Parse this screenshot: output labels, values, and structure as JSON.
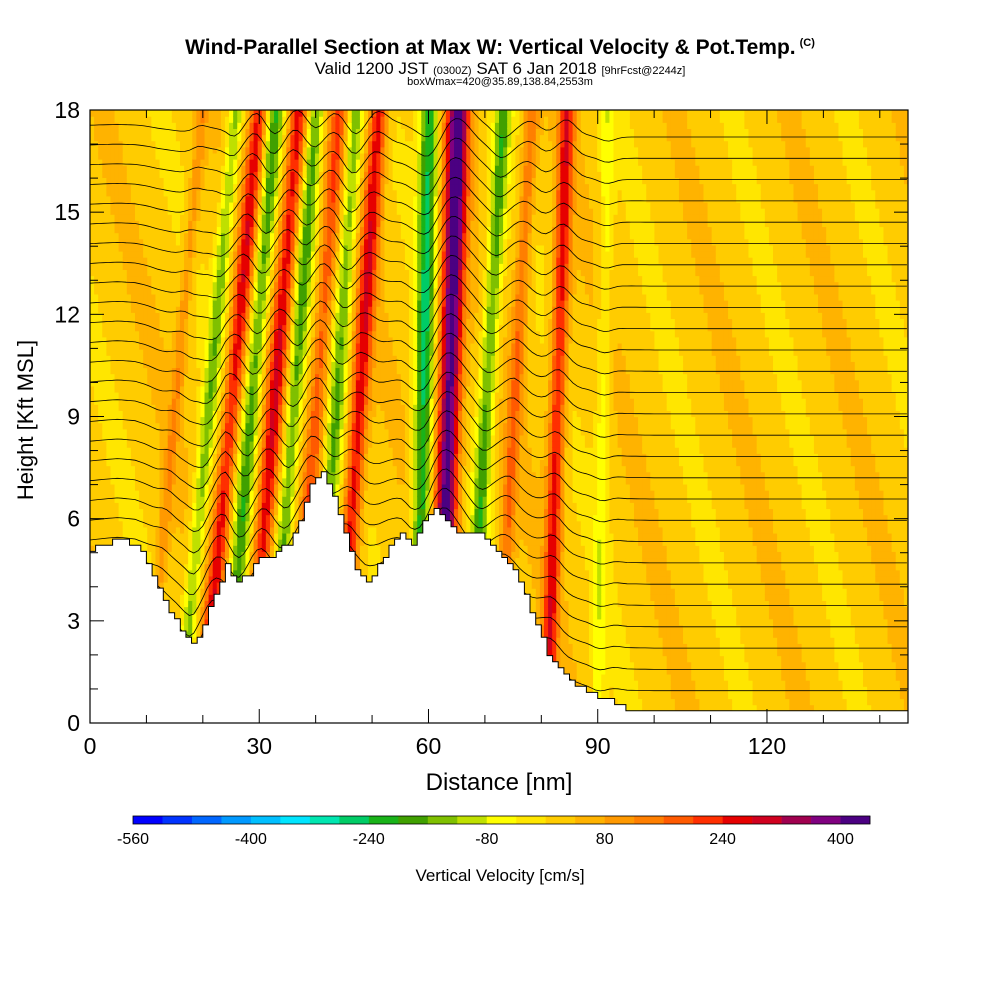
{
  "title": {
    "main": "Wind-Parallel Section at Max W: Vertical Velocity & Pot.Temp.",
    "copyright": "(C)",
    "valid_prefix": "Valid 1200 JST",
    "valid_utc": "(0300Z)",
    "valid_date": "SAT 6 Jan 2018",
    "forecast": "[9hrFcst@2244z]",
    "box_info": "boxWmax=420@35.89,138.84,2553m"
  },
  "chart_data": {
    "type": "heatmap",
    "xlabel": "Distance [nm]",
    "ylabel": "Height [Kft MSL]",
    "xlim": [
      0,
      145
    ],
    "ylim": [
      0,
      18
    ],
    "x_ticks": [
      0,
      30,
      60,
      90,
      120
    ],
    "y_ticks": [
      0,
      3,
      6,
      9,
      12,
      15,
      18
    ],
    "colorbar": {
      "label": "Vertical Velocity [cm/s]",
      "min": -560,
      "max": 440,
      "step": 40,
      "tick_labels": [
        -560,
        -400,
        -240,
        -80,
        80,
        240,
        400
      ],
      "colors": [
        "#0000ff",
        "#0033ff",
        "#0066ff",
        "#0099ff",
        "#00bfff",
        "#00e5ff",
        "#00e6b0",
        "#00cc66",
        "#19b319",
        "#40a000",
        "#7fc000",
        "#bfe000",
        "#ffff00",
        "#ffe600",
        "#ffcc00",
        "#ffb300",
        "#ff9900",
        "#ff7f00",
        "#ff5a00",
        "#ff2f00",
        "#e60000",
        "#d0001f",
        "#a0004f",
        "#800080",
        "#4b0082"
      ]
    },
    "terrain_kft": [
      [
        0,
        5.1
      ],
      [
        3,
        5.3
      ],
      [
        5,
        5.4
      ],
      [
        8,
        5.2
      ],
      [
        10,
        4.7
      ],
      [
        12,
        3.9
      ],
      [
        14,
        3.3
      ],
      [
        16,
        2.7
      ],
      [
        18,
        2.3
      ],
      [
        20,
        2.9
      ],
      [
        22,
        3.8
      ],
      [
        24,
        4.6
      ],
      [
        26,
        4.2
      ],
      [
        28,
        4.4
      ],
      [
        30,
        4.8
      ],
      [
        33,
        5.0
      ],
      [
        35,
        5.3
      ],
      [
        37,
        6.0
      ],
      [
        39,
        7.0
      ],
      [
        41,
        7.4
      ],
      [
        43,
        6.7
      ],
      [
        45,
        5.6
      ],
      [
        47,
        4.5
      ],
      [
        49,
        4.2
      ],
      [
        51,
        4.6
      ],
      [
        53,
        5.2
      ],
      [
        55,
        5.6
      ],
      [
        57,
        5.2
      ],
      [
        59,
        5.9
      ],
      [
        61,
        6.3
      ],
      [
        63,
        5.9
      ],
      [
        65,
        5.5
      ],
      [
        68,
        5.6
      ],
      [
        71,
        5.3
      ],
      [
        73,
        4.9
      ],
      [
        75,
        4.5
      ],
      [
        77,
        3.7
      ],
      [
        79,
        2.9
      ],
      [
        81,
        2.0
      ],
      [
        84,
        1.5
      ],
      [
        87,
        1.0
      ],
      [
        90,
        0.8
      ],
      [
        93,
        0.6
      ],
      [
        95,
        0.4
      ],
      [
        100,
        0.35
      ],
      [
        110,
        0.35
      ],
      [
        120,
        0.35
      ],
      [
        130,
        0.35
      ],
      [
        145,
        0.35
      ]
    ],
    "updrafts": [
      {
        "x_base": 10,
        "tilt": 0.55,
        "amp": 90,
        "width": 1.1
      },
      {
        "x_base": 20,
        "tilt": 0.55,
        "amp": 240,
        "width": 1.5
      },
      {
        "x_base": 28,
        "tilt": 0.5,
        "amp": 250,
        "width": 1.6
      },
      {
        "x_base": 36,
        "tilt": 0.45,
        "amp": 170,
        "width": 1.5
      },
      {
        "x_base": 44,
        "tilt": 0.4,
        "amp": 250,
        "width": 1.6
      },
      {
        "x_base": 62,
        "tilt": 0.18,
        "amp": 420,
        "width": 2.0
      },
      {
        "x_base": 81,
        "tilt": 0.2,
        "amp": 240,
        "width": 1.4
      },
      {
        "x_base": 72,
        "tilt": 0.35,
        "amp": 140,
        "width": 1.3
      }
    ],
    "downdrafts": [
      {
        "x_base": 16,
        "tilt": 0.55,
        "amp": -160,
        "width": 1.3
      },
      {
        "x_base": 24,
        "tilt": 0.5,
        "amp": -200,
        "width": 1.4
      },
      {
        "x_base": 32,
        "tilt": 0.45,
        "amp": -190,
        "width": 1.4
      },
      {
        "x_base": 40,
        "tilt": 0.4,
        "amp": -170,
        "width": 1.4
      },
      {
        "x_base": 58,
        "tilt": 0.12,
        "amp": -260,
        "width": 1.6
      },
      {
        "x_base": 67,
        "tilt": 0.35,
        "amp": -200,
        "width": 1.4
      },
      {
        "x_base": 90,
        "tilt": 0.1,
        "amp": -80,
        "width": 1.2
      }
    ],
    "theta_contours_kft": [
      0.6,
      1.2,
      1.8,
      2.4,
      3.0,
      3.6,
      4.2,
      4.8,
      5.4,
      6.0,
      6.6,
      7.2,
      7.8,
      8.4,
      9.0,
      9.6,
      10.2,
      10.8,
      11.4,
      12.0,
      12.6,
      13.2,
      13.8,
      14.4,
      15.0,
      15.6,
      16.2,
      16.8,
      17.4
    ]
  }
}
